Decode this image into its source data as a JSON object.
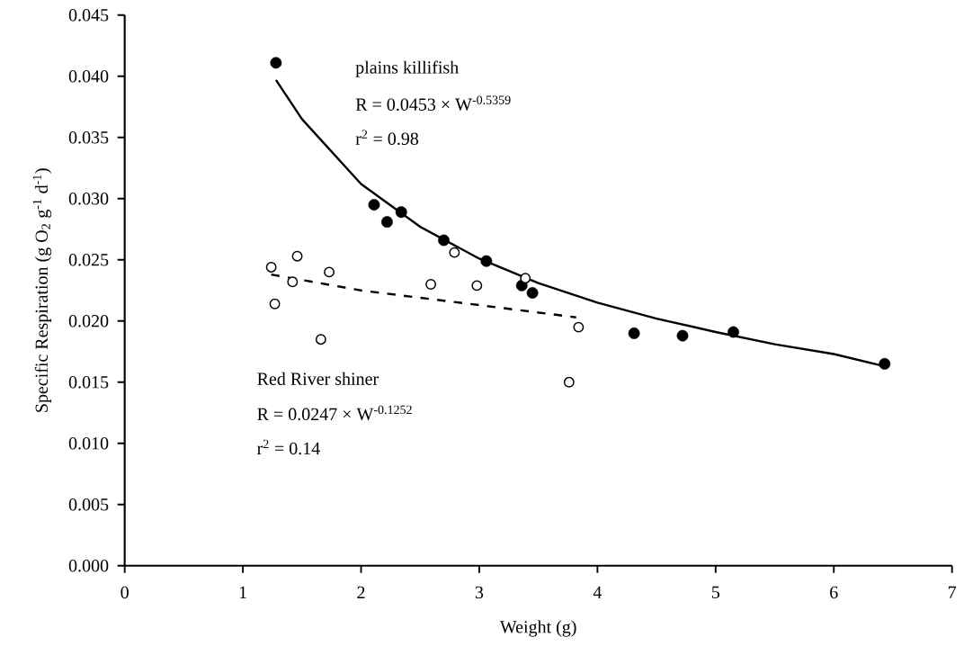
{
  "chart_data": {
    "type": "scatter",
    "xlabel": "Weight (g)",
    "ylabel": "Specific Respiration (g O$_{2}$ g$^{-1}$ d$^{-1}$)",
    "xlim": [
      0,
      7
    ],
    "ylim": [
      0,
      0.045
    ],
    "xticks": [
      0,
      1,
      2,
      3,
      4,
      5,
      6,
      7
    ],
    "yticks": [
      {
        "value": 0,
        "label": "0.000"
      },
      {
        "value": 0.005,
        "label": "0.005"
      },
      {
        "value": 0.01,
        "label": "0.010"
      },
      {
        "value": 0.015,
        "label": "0.015"
      },
      {
        "value": 0.02,
        "label": "0.020"
      },
      {
        "value": 0.025,
        "label": "0.025"
      },
      {
        "value": 0.03,
        "label": "0.030"
      },
      {
        "value": 0.035,
        "label": "0.035"
      },
      {
        "value": 0.04,
        "label": "0.040"
      },
      {
        "value": 0.045,
        "label": "0.045"
      }
    ],
    "series": [
      {
        "marker": "circle",
        "color": "#000000",
        "x": [
          1.28,
          2.11,
          2.22,
          2.34,
          2.7,
          3.06,
          3.36,
          3.45,
          4.31,
          4.72,
          5.15,
          6.43
        ],
        "values": [
          0.0411,
          0.0295,
          0.0281,
          0.0289,
          0.0266,
          0.0249,
          0.0229,
          0.0223,
          0.019,
          0.0188,
          0.0191,
          0.0165
        ]
      },
      {
        "marker": "circle",
        "color": "#000000",
        "x": [
          1.24,
          1.27,
          1.46,
          1.42,
          1.73,
          1.66,
          2.59,
          2.79,
          2.98,
          3.39,
          3.84,
          3.76
        ],
        "values": [
          0.0244,
          0.0214,
          0.0253,
          0.0232,
          0.024,
          0.0185,
          0.023,
          0.0256,
          0.0229,
          0.0235,
          0.0195,
          0.015
        ]
      },
      {
        "type": "line",
        "marker": "none",
        "line_style": "solid",
        "color": "#000000",
        "x": [
          1.28,
          1.5,
          2,
          2.5,
          3,
          3.5,
          4,
          4.5,
          5,
          5.5,
          6,
          6.43
        ],
        "values": [
          0.0397,
          0.0365,
          0.0312,
          0.0277,
          0.0251,
          0.0231,
          0.0215,
          0.0202,
          0.0191,
          0.0181,
          0.0173,
          0.0163
        ]
      },
      {
        "type": "line",
        "marker": "none",
        "line_style": "dashed",
        "color": "#000000",
        "x": [
          1.24,
          2,
          3,
          3.82
        ],
        "values": [
          0.0238,
          0.0225,
          0.0213,
          0.0203
        ]
      }
    ],
    "annotations": [
      "plains killifish",
      "R = 0.0453 × W$^{-0.5359}$",
      "r$^{2}$ = 0.98",
      "Red River shiner",
      "R = 0.0247 × W$^{-0.1252}$",
      "r$^{2}$ = 0.14"
    ]
  }
}
